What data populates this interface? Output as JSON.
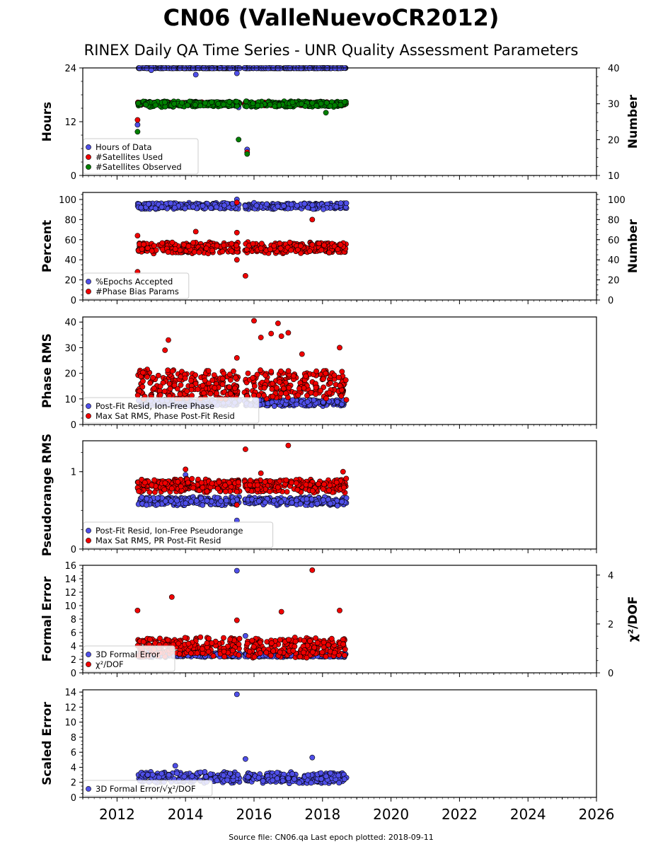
{
  "title": "CN06 (ValleNuevoCR2012)",
  "subtitle": "RINEX Daily QA Time Series - UNR Quality Assessment Parameters",
  "footer": "Source file: CN06.qa Last epoch plotted: 2018-09-11",
  "colors": {
    "blue": "#4f4fe8",
    "red": "#f00000",
    "green": "#008000",
    "edge": "#000000"
  },
  "chart_data": [
    {
      "type": "scatter",
      "ylabel": "Hours",
      "ylabel_right": "Number",
      "ylim": [
        0,
        24
      ],
      "yticks": [
        0,
        12,
        24
      ],
      "ylim_right": [
        10,
        40
      ],
      "yticks_right": [
        10,
        20,
        30,
        40
      ],
      "xlim": [
        2011.0,
        2026.0
      ],
      "grid": false,
      "legend_loc": "lower-left",
      "series": [
        {
          "name": "Hours of Data",
          "color": "blue",
          "axis": "left",
          "typical": [
            23.9,
            24.0
          ],
          "outliers": [
            [
              2012.6,
              11.3
            ],
            [
              2013.0,
              23.5
            ],
            [
              2014.3,
              22.5
            ],
            [
              2015.5,
              22.8
            ],
            [
              2015.55,
              15.2
            ],
            [
              2015.8,
              5.8
            ]
          ]
        },
        {
          "name": "#Satellites Used",
          "color": "red",
          "axis": "right",
          "typical": [
            29.5,
            30.5
          ],
          "outliers": [
            [
              2012.6,
              25.5
            ],
            [
              2015.8,
              16.5
            ]
          ]
        },
        {
          "name": "#Satellites Observed",
          "color": "green",
          "axis": "right",
          "typical": [
            29.0,
            30.8
          ],
          "outliers": [
            [
              2012.6,
              22.2
            ],
            [
              2015.55,
              20.0
            ],
            [
              2015.8,
              16.0
            ],
            [
              2018.1,
              27.5
            ]
          ]
        }
      ]
    },
    {
      "type": "scatter",
      "ylabel": "Percent",
      "ylabel_right": "Number",
      "ylim": [
        0,
        107
      ],
      "yticks": [
        0,
        20,
        40,
        60,
        80,
        100
      ],
      "ylim_right": [
        0,
        107
      ],
      "yticks_right": [
        0,
        20,
        40,
        60,
        80,
        100
      ],
      "xlim": [
        2011.0,
        2026.0
      ],
      "grid": false,
      "legend_loc": "lower-left",
      "series": [
        {
          "name": "%Epochs Accepted",
          "color": "blue",
          "axis": "left",
          "typical": [
            90,
            97
          ],
          "outliers": [
            [
              2015.5,
              100
            ]
          ]
        },
        {
          "name": "#Phase Bias Params",
          "color": "red",
          "axis": "right",
          "typical": [
            46,
            58
          ],
          "outliers": [
            [
              2012.6,
              28
            ],
            [
              2012.6,
              64
            ],
            [
              2014.3,
              68
            ],
            [
              2015.5,
              67
            ],
            [
              2015.5,
              40
            ],
            [
              2015.75,
              24
            ],
            [
              2015.5,
              97
            ],
            [
              2017.7,
              80
            ]
          ]
        }
      ]
    },
    {
      "type": "scatter",
      "ylabel": "Phase RMS",
      "ylim": [
        0,
        42
      ],
      "yticks": [
        0,
        10,
        20,
        30,
        40
      ],
      "xlim": [
        2011.0,
        2026.0
      ],
      "grid": false,
      "legend_loc": "lower-left",
      "series": [
        {
          "name": "Post-Fit Resid, Ion-Free Phase",
          "color": "blue",
          "axis": "left",
          "typical": [
            7,
            10
          ],
          "outliers": []
        },
        {
          "name": "Max Sat RMS, Phase Post-Fit Resid",
          "color": "red",
          "axis": "left",
          "typical": [
            9,
            22
          ],
          "outliers": [
            [
              2013.5,
              33
            ],
            [
              2013.4,
              29
            ],
            [
              2016.0,
              40.5
            ],
            [
              2016.2,
              34
            ],
            [
              2016.5,
              35.5
            ],
            [
              2016.7,
              39.5
            ],
            [
              2017.0,
              35.8
            ],
            [
              2016.8,
              34.5
            ],
            [
              2017.4,
              27.5
            ],
            [
              2018.5,
              30
            ],
            [
              2015.5,
              26
            ]
          ]
        }
      ]
    },
    {
      "type": "scatter",
      "ylabel": "Pseudorange RMS",
      "ylim": [
        0,
        1.4
      ],
      "yticks": [
        0,
        1
      ],
      "xlim": [
        2011.0,
        2026.0
      ],
      "grid": false,
      "legend_loc": "lower-left",
      "series": [
        {
          "name": "Post-Fit Resid, Ion-Free Pseudorange",
          "color": "blue",
          "axis": "left",
          "typical": [
            0.56,
            0.68
          ],
          "outliers": [
            [
              2015.5,
              0.37
            ],
            [
              2014.0,
              0.96
            ]
          ]
        },
        {
          "name": "Max Sat RMS, PR Post-Fit Resid",
          "color": "red",
          "axis": "left",
          "typical": [
            0.72,
            0.92
          ],
          "outliers": [
            [
              2014.0,
              1.03
            ],
            [
              2015.75,
              1.29
            ],
            [
              2017.0,
              1.34
            ],
            [
              2016.2,
              0.98
            ],
            [
              2018.6,
              1.0
            ],
            [
              2015.5,
              0.57
            ]
          ]
        }
      ]
    },
    {
      "type": "scatter",
      "ylabel": "Formal Error",
      "ylabel_right": "χ²/DOF",
      "ylim": [
        0,
        16
      ],
      "yticks": [
        0,
        2,
        4,
        6,
        8,
        10,
        12,
        14,
        16
      ],
      "ylim_right": [
        0,
        4.4
      ],
      "yticks_right": [
        0,
        2,
        4
      ],
      "xlim": [
        2011.0,
        2026.0
      ],
      "grid": false,
      "legend_loc": "lower-left",
      "series": [
        {
          "name": "3D Formal Error",
          "color": "blue",
          "axis": "left",
          "typical": [
            2.3,
            3.0
          ],
          "outliers": [
            [
              2015.5,
              15.2
            ],
            [
              2015.75,
              5.5
            ]
          ]
        },
        {
          "name": "χ²/DOF",
          "color": "red",
          "axis": "right",
          "typical": [
            0.6,
            1.5
          ],
          "outliers": [
            [
              2012.6,
              2.55
            ],
            [
              2013.6,
              3.1
            ],
            [
              2015.5,
              2.15
            ],
            [
              2016.8,
              2.5
            ],
            [
              2017.7,
              4.2
            ],
            [
              2018.5,
              2.55
            ]
          ]
        }
      ]
    },
    {
      "type": "scatter",
      "ylabel": "Scaled Error",
      "ylim": [
        0,
        14.3
      ],
      "yticks": [
        0,
        2,
        4,
        6,
        8,
        10,
        12,
        14
      ],
      "xlim": [
        2011.0,
        2026.0
      ],
      "grid": false,
      "legend_loc": "lower-left",
      "xticks": [
        "2012",
        "2014",
        "2016",
        "2018",
        "2020",
        "2022",
        "2024",
        "2026"
      ],
      "series": [
        {
          "name": "3D Formal Error/√χ²/DOF",
          "color": "blue",
          "axis": "left",
          "typical": [
            1.8,
            3.5
          ],
          "outliers": [
            [
              2015.5,
              13.7
            ],
            [
              2015.75,
              5.1
            ],
            [
              2017.7,
              5.3
            ],
            [
              2013.7,
              4.2
            ]
          ]
        }
      ]
    }
  ],
  "data_span": {
    "start": 2012.6,
    "gap": [
      2015.58,
      2015.72
    ],
    "end": 2018.7
  }
}
